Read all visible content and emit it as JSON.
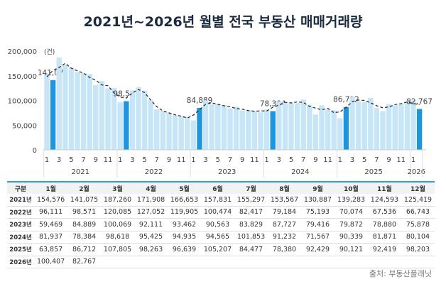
{
  "chart_data": {
    "type": "bar",
    "title": "2021년~2026년 월별 전국 부동산 매매거래량",
    "unit": "(건)",
    "ylim": [
      0,
      200000
    ],
    "yticks": [
      "0",
      "50,000",
      "100,000",
      "150,000",
      "200,000"
    ],
    "years": [
      "2021",
      "2022",
      "2023",
      "2024",
      "2025",
      "2026"
    ],
    "months": [
      "1월",
      "2월",
      "3월",
      "4월",
      "5월",
      "6월",
      "7월",
      "8월",
      "9월",
      "10월",
      "11월",
      "12월"
    ],
    "series": [
      {
        "year": "2021년",
        "values": [
          154576,
          141075,
          187260,
          171908,
          166653,
          157831,
          155297,
          153567,
          130887,
          139283,
          124593,
          125419
        ]
      },
      {
        "year": "2022년",
        "values": [
          96111,
          98571,
          120085,
          127052,
          119905,
          100474,
          82417,
          79184,
          75193,
          70074,
          67536,
          66743
        ]
      },
      {
        "year": "2023년",
        "values": [
          59469,
          84889,
          100069,
          92111,
          93462,
          90563,
          83829,
          87727,
          79416,
          79872,
          78880,
          75878
        ]
      },
      {
        "year": "2024년",
        "values": [
          81937,
          78384,
          98618,
          95425,
          94935,
          94565,
          101853,
          91232,
          71567,
          90339,
          81871,
          80104
        ]
      },
      {
        "year": "2025년",
        "values": [
          63857,
          86712,
          107805,
          98263,
          96639,
          105207,
          84477,
          78380,
          92429,
          90121,
          92419,
          98203
        ]
      },
      {
        "year": "2026년",
        "values": [
          100407,
          82767
        ]
      }
    ],
    "highlight_labels": [
      "141,075",
      "98,571",
      "84,889",
      "78,384",
      "86,712",
      "82,767"
    ],
    "colors": {
      "bar": "#c6e6f7",
      "highlight": "#1e95dc",
      "trend": "#222222"
    },
    "grid": false
  },
  "table": {
    "header": "구분",
    "rows": [
      [
        "2021년",
        "154,576",
        "141,075",
        "187,260",
        "171,908",
        "166,653",
        "157,831",
        "155,297",
        "153,567",
        "130,887",
        "139,283",
        "124,593",
        "125,419"
      ],
      [
        "2022년",
        "96,111",
        "98,571",
        "120,085",
        "127,052",
        "119,905",
        "100,474",
        "82,417",
        "79,184",
        "75,193",
        "70,074",
        "67,536",
        "66,743"
      ],
      [
        "2023년",
        "59,469",
        "84,889",
        "100,069",
        "92,111",
        "93,462",
        "90,563",
        "83,829",
        "87,727",
        "79,416",
        "79,872",
        "78,880",
        "75,878"
      ],
      [
        "2024년",
        "81,937",
        "78,384",
        "98,618",
        "95,425",
        "94,935",
        "94,565",
        "101,853",
        "91,232",
        "71,567",
        "90,339",
        "81,871",
        "80,104"
      ],
      [
        "2025년",
        "63,857",
        "86,712",
        "107,805",
        "98,263",
        "96,639",
        "105,207",
        "84,477",
        "78,380",
        "92,429",
        "90,121",
        "92,419",
        "98,203"
      ],
      [
        "2026년",
        "100,407",
        "82,767",
        "",
        "",
        "",
        "",
        "",
        "",
        "",
        "",
        "",
        ""
      ]
    ]
  },
  "source": "출처: 부동산플래닛"
}
